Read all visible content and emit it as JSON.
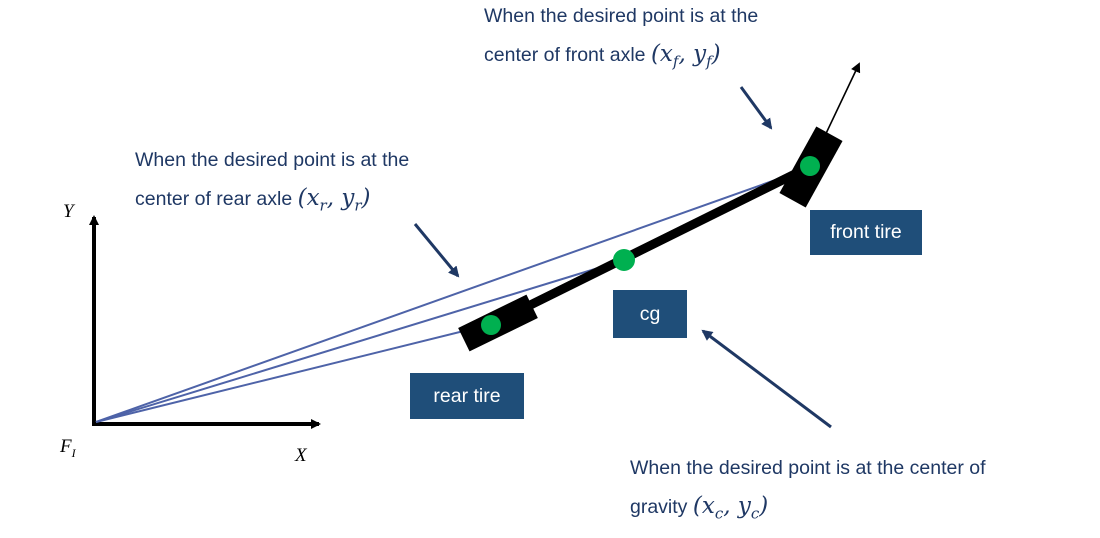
{
  "colors": {
    "caption_text": "#1f3864",
    "tag_background": "#1f4e79",
    "tag_text": "#ffffff",
    "position_vector": "#4e63a8",
    "pointer_arrow": "#1f3864",
    "point_marker": "#00b050",
    "vehicle_body": "#000000"
  },
  "axes": {
    "y_label": "Y",
    "x_label": "X",
    "frame_label": "F",
    "frame_subscript": "I"
  },
  "tags": {
    "front_tire": "front tire",
    "rear_tire": "rear tire",
    "cg": "cg"
  },
  "captions": {
    "front": {
      "line1": "When the desired point is at the",
      "line2": "center of front axle",
      "open": "(x",
      "sub1": "f",
      "mid": ", y",
      "sub2": "f",
      "close": ")"
    },
    "rear": {
      "line1": "When the desired point is at the",
      "line2": "center of rear axle",
      "open": "(x",
      "sub1": "r",
      "mid": ", y",
      "sub2": "r",
      "close": ")"
    },
    "cg": {
      "line1": "When the desired point is at the center of",
      "line2": "gravity",
      "open": "(x",
      "sub1": "c",
      "mid": ", y",
      "sub2": "c",
      "close": ")"
    }
  },
  "icons": {
    "tire": "tire-icon",
    "marker": "point-marker-icon",
    "arrow": "arrow-icon"
  }
}
